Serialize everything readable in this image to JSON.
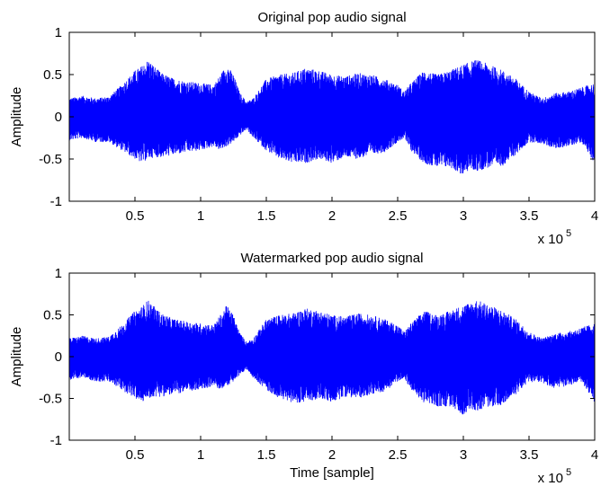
{
  "chart_data": [
    {
      "type": "line",
      "title": "Original pop audio signal",
      "xlabel": "",
      "ylabel": "Amplitude",
      "xlim": [
        0,
        400000
      ],
      "ylim": [
        -1,
        1
      ],
      "x_ticks": [
        50000,
        100000,
        150000,
        200000,
        250000,
        300000,
        350000,
        400000
      ],
      "x_tick_labels": [
        "0.5",
        "1",
        "1.5",
        "2",
        "2.5",
        "3",
        "3.5",
        "4"
      ],
      "y_ticks": [
        -1,
        -0.5,
        0,
        0.5,
        1
      ],
      "y_tick_labels": [
        "-1",
        "-0.5",
        "0",
        "0.5",
        "1"
      ],
      "x_exponent_label": "x 10",
      "x_exponent_power": "5",
      "grid": false,
      "series": [
        {
          "color": "#0000ff",
          "x": [
            0,
            10000,
            20000,
            30000,
            40000,
            50000,
            55000,
            60000,
            65000,
            70000,
            80000,
            90000,
            100000,
            110000,
            115000,
            120000,
            125000,
            130000,
            135000,
            140000,
            150000,
            160000,
            170000,
            180000,
            190000,
            200000,
            210000,
            220000,
            230000,
            240000,
            250000,
            255000,
            260000,
            270000,
            280000,
            290000,
            300000,
            305000,
            310000,
            320000,
            330000,
            340000,
            350000,
            360000,
            370000,
            380000,
            390000,
            400000
          ],
          "upper": [
            0.22,
            0.25,
            0.22,
            0.24,
            0.38,
            0.55,
            0.6,
            0.68,
            0.6,
            0.52,
            0.45,
            0.42,
            0.4,
            0.38,
            0.5,
            0.62,
            0.5,
            0.28,
            0.18,
            0.22,
            0.45,
            0.5,
            0.52,
            0.58,
            0.55,
            0.5,
            0.48,
            0.52,
            0.5,
            0.45,
            0.38,
            0.3,
            0.4,
            0.55,
            0.5,
            0.55,
            0.62,
            0.65,
            0.68,
            0.62,
            0.55,
            0.45,
            0.3,
            0.22,
            0.28,
            0.3,
            0.35,
            0.4
          ],
          "lower": [
            -0.28,
            -0.25,
            -0.3,
            -0.3,
            -0.4,
            -0.5,
            -0.55,
            -0.5,
            -0.48,
            -0.48,
            -0.45,
            -0.42,
            -0.4,
            -0.35,
            -0.4,
            -0.35,
            -0.3,
            -0.22,
            -0.15,
            -0.25,
            -0.4,
            -0.5,
            -0.55,
            -0.55,
            -0.5,
            -0.55,
            -0.48,
            -0.5,
            -0.45,
            -0.42,
            -0.3,
            -0.25,
            -0.4,
            -0.55,
            -0.6,
            -0.6,
            -0.7,
            -0.62,
            -0.65,
            -0.6,
            -0.58,
            -0.45,
            -0.3,
            -0.32,
            -0.38,
            -0.35,
            -0.3,
            -0.55
          ]
        }
      ]
    },
    {
      "type": "line",
      "title": "Watermarked pop audio signal",
      "xlabel": "Time [sample]",
      "ylabel": "Amplitude",
      "xlim": [
        0,
        400000
      ],
      "ylim": [
        -1,
        1
      ],
      "x_ticks": [
        50000,
        100000,
        150000,
        200000,
        250000,
        300000,
        350000,
        400000
      ],
      "x_tick_labels": [
        "0.5",
        "1",
        "1.5",
        "2",
        "2.5",
        "3",
        "3.5",
        "4"
      ],
      "y_ticks": [
        -1,
        -0.5,
        0,
        0.5,
        1
      ],
      "y_tick_labels": [
        "-1",
        "-0.5",
        "0",
        "0.5",
        "1"
      ],
      "x_exponent_label": "x 10",
      "x_exponent_power": "5",
      "grid": false,
      "series": [
        {
          "color": "#0000ff",
          "x": [
            0,
            10000,
            20000,
            30000,
            40000,
            50000,
            55000,
            60000,
            65000,
            70000,
            80000,
            90000,
            100000,
            110000,
            115000,
            120000,
            125000,
            130000,
            135000,
            140000,
            150000,
            160000,
            170000,
            180000,
            190000,
            200000,
            210000,
            220000,
            230000,
            240000,
            250000,
            255000,
            260000,
            270000,
            280000,
            290000,
            300000,
            305000,
            310000,
            320000,
            330000,
            340000,
            350000,
            360000,
            370000,
            380000,
            390000,
            400000
          ],
          "upper": [
            0.22,
            0.25,
            0.22,
            0.24,
            0.38,
            0.55,
            0.6,
            0.68,
            0.6,
            0.52,
            0.45,
            0.42,
            0.4,
            0.38,
            0.5,
            0.62,
            0.5,
            0.28,
            0.18,
            0.22,
            0.45,
            0.5,
            0.52,
            0.58,
            0.55,
            0.5,
            0.48,
            0.52,
            0.5,
            0.45,
            0.38,
            0.3,
            0.4,
            0.55,
            0.5,
            0.55,
            0.62,
            0.65,
            0.68,
            0.62,
            0.55,
            0.45,
            0.3,
            0.22,
            0.28,
            0.3,
            0.35,
            0.4
          ],
          "lower": [
            -0.28,
            -0.25,
            -0.3,
            -0.3,
            -0.4,
            -0.5,
            -0.55,
            -0.5,
            -0.48,
            -0.48,
            -0.45,
            -0.42,
            -0.4,
            -0.35,
            -0.4,
            -0.35,
            -0.3,
            -0.22,
            -0.15,
            -0.25,
            -0.4,
            -0.5,
            -0.55,
            -0.55,
            -0.5,
            -0.55,
            -0.48,
            -0.5,
            -0.45,
            -0.42,
            -0.3,
            -0.25,
            -0.4,
            -0.55,
            -0.6,
            -0.6,
            -0.7,
            -0.62,
            -0.65,
            -0.6,
            -0.58,
            -0.45,
            -0.3,
            -0.32,
            -0.38,
            -0.35,
            -0.3,
            -0.55
          ]
        }
      ]
    }
  ]
}
